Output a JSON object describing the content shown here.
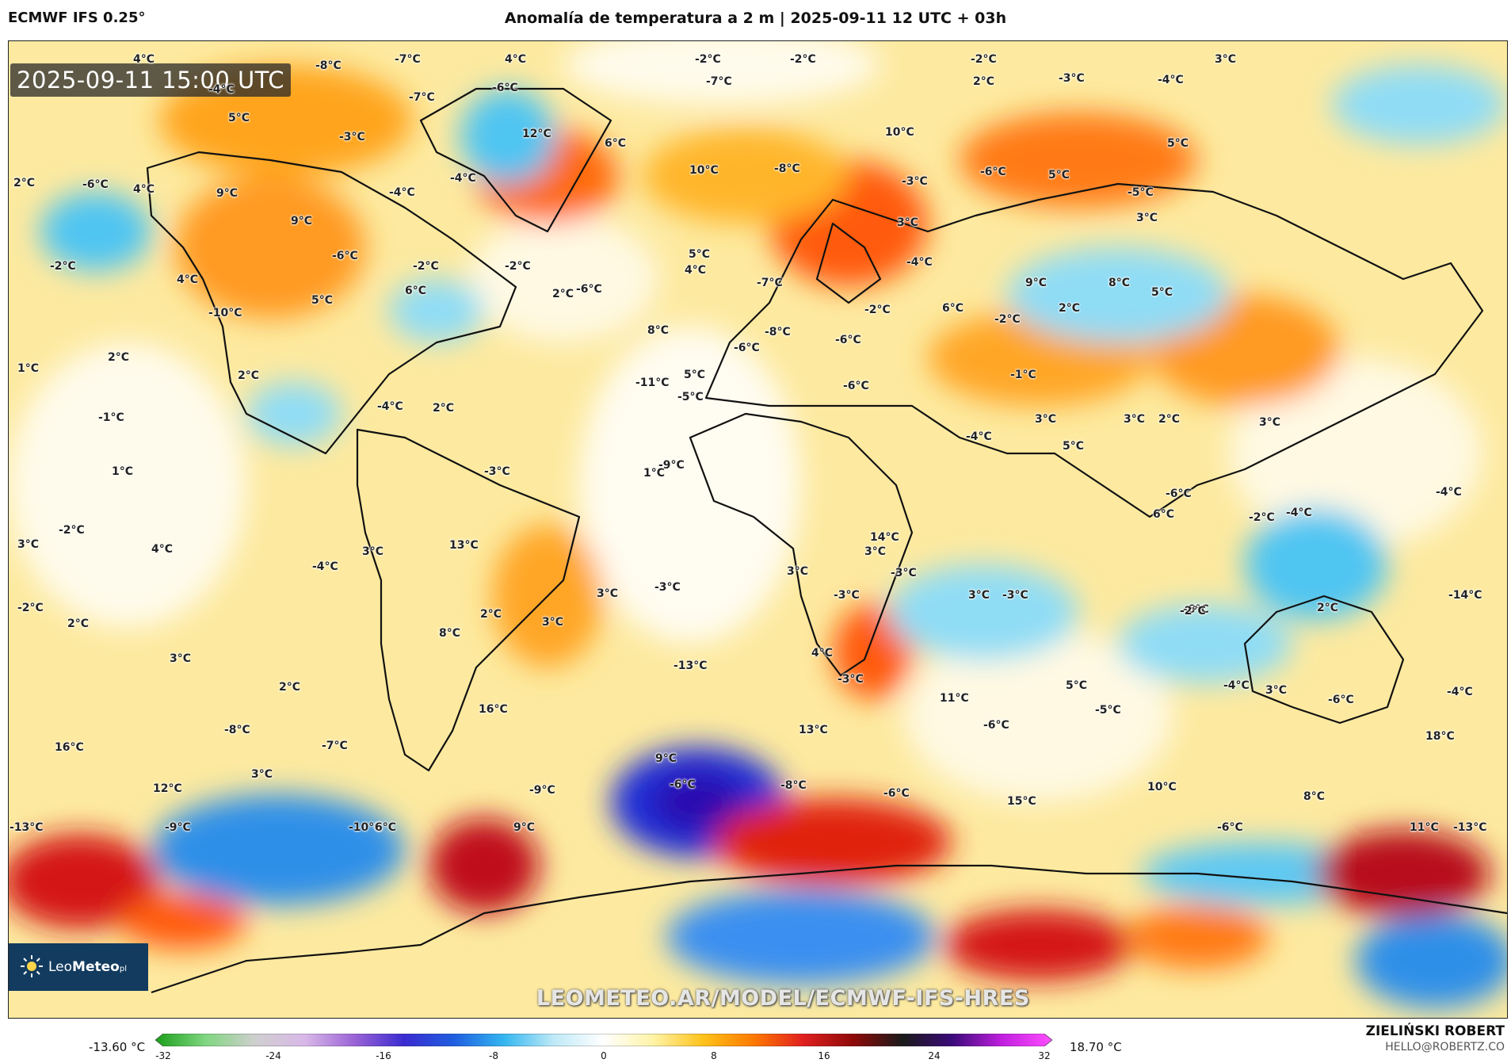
{
  "header": {
    "model": "ECMWF IFS 0.25°",
    "title": "Anomalía de temperatura a 2 m | 2025-09-11 12 UTC + 03h"
  },
  "map": {
    "valid_time": "2025-09-11 15:00 UTC",
    "watermark": "LEOMETEO.AR/MODEL/ECMWF-IFS-HRES",
    "brand": {
      "prefix": "Leo",
      "name": "Meteo",
      "suffix": "pl",
      "icon": "sun-icon"
    },
    "labels": [
      {
        "id": "l1",
        "text": "4°C"
      },
      {
        "id": "l2",
        "text": "-8°C"
      },
      {
        "id": "l3",
        "text": "-7°C"
      },
      {
        "id": "l4",
        "text": "4°C"
      },
      {
        "id": "l5",
        "text": "-2°C"
      },
      {
        "id": "l6",
        "text": "-2°C"
      },
      {
        "id": "l7",
        "text": "-2°C"
      },
      {
        "id": "l8",
        "text": "3°C"
      },
      {
        "id": "l9",
        "text": "-4°C"
      },
      {
        "id": "l10",
        "text": "-7°C"
      },
      {
        "id": "l11",
        "text": "-6°C"
      },
      {
        "id": "l12",
        "text": "-7°C"
      },
      {
        "id": "l13",
        "text": "2°C"
      },
      {
        "id": "l14",
        "text": "-3°C"
      },
      {
        "id": "l15",
        "text": "-4°C"
      },
      {
        "id": "l16",
        "text": "5°C"
      },
      {
        "id": "l17",
        "text": "-3°C"
      },
      {
        "id": "l18",
        "text": "12°C"
      },
      {
        "id": "l19",
        "text": "6°C"
      },
      {
        "id": "l20",
        "text": "10°C"
      },
      {
        "id": "l21",
        "text": "5°C"
      },
      {
        "id": "l22",
        "text": "2°C"
      },
      {
        "id": "l23",
        "text": "-6°C"
      },
      {
        "id": "l24",
        "text": "4°C"
      },
      {
        "id": "l25",
        "text": "9°C"
      },
      {
        "id": "l26",
        "text": "-4°C"
      },
      {
        "id": "l27",
        "text": "-4°C"
      },
      {
        "id": "l28",
        "text": "10°C"
      },
      {
        "id": "l29",
        "text": "-8°C"
      },
      {
        "id": "l30",
        "text": "-3°C"
      },
      {
        "id": "l31",
        "text": "-6°C"
      },
      {
        "id": "l32",
        "text": "5°C"
      },
      {
        "id": "l33",
        "text": "-5°C"
      },
      {
        "id": "l34",
        "text": "9°C"
      },
      {
        "id": "l35",
        "text": "3°C"
      },
      {
        "id": "l36",
        "text": "3°C"
      },
      {
        "id": "l37",
        "text": "-6°C"
      },
      {
        "id": "l38",
        "text": "-2°C"
      },
      {
        "id": "l39",
        "text": "4°C"
      },
      {
        "id": "l40",
        "text": "-2°C"
      },
      {
        "id": "l41",
        "text": "-2°C"
      },
      {
        "id": "l42",
        "text": "-4°C"
      },
      {
        "id": "l43",
        "text": "4°C"
      },
      {
        "id": "l44",
        "text": "6°C"
      },
      {
        "id": "l45",
        "text": "2°C"
      },
      {
        "id": "l46",
        "text": "-6°C"
      },
      {
        "id": "l47",
        "text": "5°C"
      },
      {
        "id": "l48",
        "text": "-7°C"
      },
      {
        "id": "l49",
        "text": "9°C"
      },
      {
        "id": "l50",
        "text": "8°C"
      },
      {
        "id": "l51",
        "text": "5°C"
      },
      {
        "id": "l52",
        "text": "-10°C"
      },
      {
        "id": "l53",
        "text": "5°C"
      },
      {
        "id": "l54",
        "text": "-2°C"
      },
      {
        "id": "l55",
        "text": "6°C"
      },
      {
        "id": "l56",
        "text": "2°C"
      },
      {
        "id": "l57",
        "text": "-2°C"
      },
      {
        "id": "l58",
        "text": "8°C"
      },
      {
        "id": "l59",
        "text": "-8°C"
      },
      {
        "id": "l60",
        "text": "-6°C"
      },
      {
        "id": "l61",
        "text": "1°C"
      },
      {
        "id": "l62",
        "text": "2°C"
      },
      {
        "id": "l63",
        "text": "-6°C"
      },
      {
        "id": "l64",
        "text": "5°C"
      },
      {
        "id": "l65",
        "text": "-5°C"
      },
      {
        "id": "l66",
        "text": "-11°C"
      },
      {
        "id": "l67",
        "text": "-6°C"
      },
      {
        "id": "l68",
        "text": "-1°C"
      },
      {
        "id": "l69",
        "text": "-1°C"
      },
      {
        "id": "l70",
        "text": "2°C"
      },
      {
        "id": "l71",
        "text": "-4°C"
      },
      {
        "id": "l72",
        "text": "-4°C"
      },
      {
        "id": "l73",
        "text": "3°C"
      },
      {
        "id": "l74",
        "text": "3°C"
      },
      {
        "id": "l75",
        "text": "2°C"
      },
      {
        "id": "l76",
        "text": "3°C"
      },
      {
        "id": "l77",
        "text": "2°C"
      },
      {
        "id": "l78",
        "text": "1°C"
      },
      {
        "id": "l79",
        "text": "-3°C"
      },
      {
        "id": "l80",
        "text": "1°C"
      },
      {
        "id": "l81",
        "text": "-9°C"
      },
      {
        "id": "l82",
        "text": "5°C"
      },
      {
        "id": "l83",
        "text": "6°C"
      },
      {
        "id": "l84",
        "text": "-2°C"
      },
      {
        "id": "l85",
        "text": "-4°C"
      },
      {
        "id": "l86",
        "text": "-6°C"
      },
      {
        "id": "l87",
        "text": "-4°C"
      },
      {
        "id": "l88",
        "text": "-2°C"
      },
      {
        "id": "l89",
        "text": "14°C"
      },
      {
        "id": "l90",
        "text": "3°C"
      },
      {
        "id": "l91",
        "text": "3°C"
      },
      {
        "id": "l92",
        "text": "4°C"
      },
      {
        "id": "l93",
        "text": "13°C"
      },
      {
        "id": "l94",
        "text": "3°C"
      },
      {
        "id": "l95",
        "text": "-4°C"
      },
      {
        "id": "l96",
        "text": "3°C"
      },
      {
        "id": "l97",
        "text": "-3°C"
      },
      {
        "id": "l98",
        "text": "3°C"
      },
      {
        "id": "l99",
        "text": "-3°C"
      },
      {
        "id": "l100",
        "text": "3°C"
      },
      {
        "id": "l101",
        "text": "-3°C"
      },
      {
        "id": "l102",
        "text": "-3°C"
      },
      {
        "id": "l103",
        "text": "-6°C"
      },
      {
        "id": "l104",
        "text": "-14°C"
      },
      {
        "id": "l105",
        "text": "-2°C"
      },
      {
        "id": "l106",
        "text": "2°C"
      },
      {
        "id": "l107",
        "text": "2°C"
      },
      {
        "id": "l108",
        "text": "3°C"
      },
      {
        "id": "l109",
        "text": "8°C"
      },
      {
        "id": "l110",
        "text": "-13°C"
      },
      {
        "id": "l111",
        "text": "4°C"
      },
      {
        "id": "l112",
        "text": "2°C"
      },
      {
        "id": "l113",
        "text": "3°C"
      },
      {
        "id": "l114",
        "text": "-2°C"
      },
      {
        "id": "l115",
        "text": "-3°C"
      },
      {
        "id": "l116",
        "text": "5°C"
      },
      {
        "id": "l117",
        "text": "-4°C"
      },
      {
        "id": "l118",
        "text": "3°C"
      },
      {
        "id": "l119",
        "text": "-4°C"
      },
      {
        "id": "l120",
        "text": "2°C"
      },
      {
        "id": "l121",
        "text": "16°C"
      },
      {
        "id": "l122",
        "text": "-8°C"
      },
      {
        "id": "l123",
        "text": "16°C"
      },
      {
        "id": "l124",
        "text": "11°C"
      },
      {
        "id": "l125",
        "text": "-6°C"
      },
      {
        "id": "l126",
        "text": "-5°C"
      },
      {
        "id": "l127",
        "text": "-6°C"
      },
      {
        "id": "l128",
        "text": "-7°C"
      },
      {
        "id": "l129",
        "text": "13°C"
      },
      {
        "id": "l130",
        "text": "18°C"
      },
      {
        "id": "l131",
        "text": "3°C"
      },
      {
        "id": "l132",
        "text": "9°C"
      },
      {
        "id": "l133",
        "text": "12°C"
      },
      {
        "id": "l134",
        "text": "-9°C"
      },
      {
        "id": "l135",
        "text": "-6°C"
      },
      {
        "id": "l136",
        "text": "-8°C"
      },
      {
        "id": "l137",
        "text": "-6°C"
      },
      {
        "id": "l138",
        "text": "15°C"
      },
      {
        "id": "l139",
        "text": "10°C"
      },
      {
        "id": "l140",
        "text": "8°C"
      },
      {
        "id": "l141",
        "text": "-13°C"
      },
      {
        "id": "l142",
        "text": "-9°C"
      },
      {
        "id": "l143",
        "text": "-10°C"
      },
      {
        "id": "l144",
        "text": "6°C"
      },
      {
        "id": "l145",
        "text": "9°C"
      },
      {
        "id": "l146",
        "text": "-6°C"
      },
      {
        "id": "l147",
        "text": "11°C"
      },
      {
        "id": "l148",
        "text": "-13°C"
      }
    ]
  },
  "colorbar": {
    "min_label": "-13.60 °C",
    "max_label": "18.70 °C",
    "range": [
      -32,
      32
    ],
    "ticks": [
      "-32",
      "-24",
      "-16",
      "-8",
      "0",
      "8",
      "16",
      "24",
      "32"
    ],
    "stops": [
      "#1a9e1a",
      "#7fd67f",
      "#cfcfcf",
      "#d9b8e8",
      "#9a63d6",
      "#3a2bd0",
      "#1f5fe0",
      "#34b6f0",
      "#bfeaf7",
      "#ffffff",
      "#fff3a6",
      "#ffc21a",
      "#ff7a00",
      "#e01f1f",
      "#8f0a0a",
      "#1a1a1a",
      "#3b0a7a",
      "#c21fe0",
      "#ff4fff"
    ]
  },
  "footer": {
    "author": "ZIELIŃSKI ROBERT",
    "email": "HELLO@ROBERTZ.CO"
  }
}
